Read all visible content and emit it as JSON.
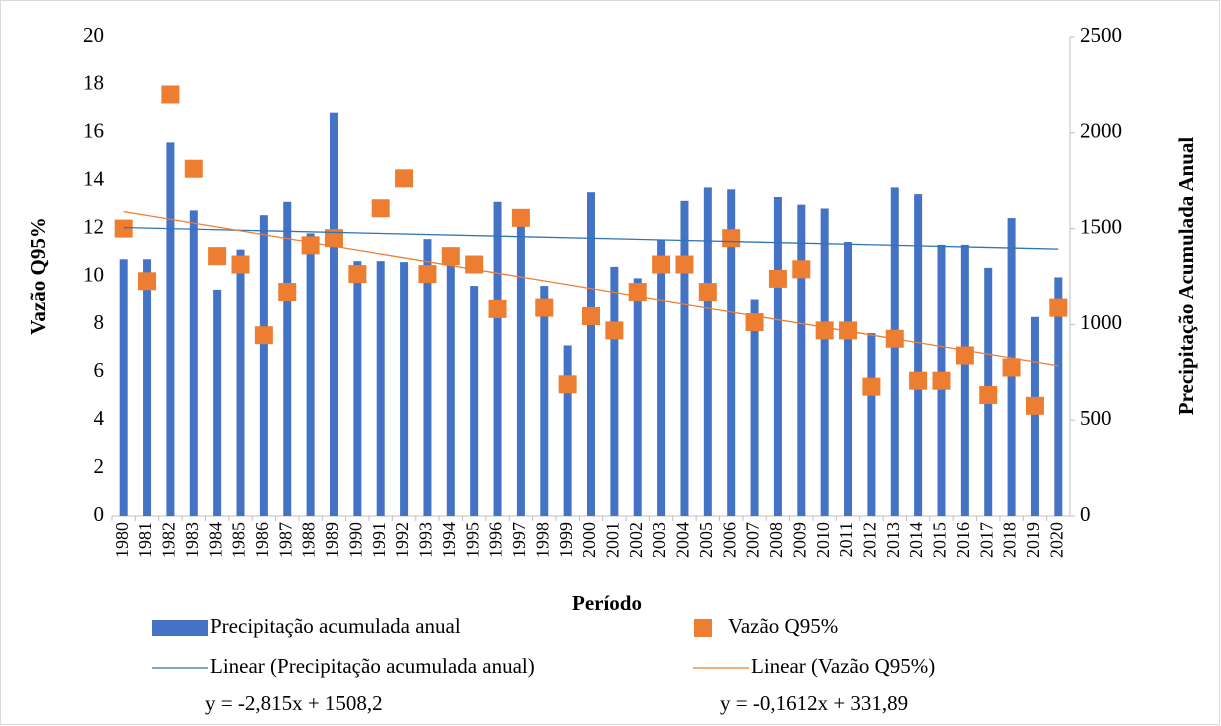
{
  "chart_data": {
    "type": "bar",
    "xlabel": "Período",
    "ylabel": "Vazão Q95%",
    "y2label": "Precipitação Acumulada Anual",
    "categories": [
      "1980",
      "1981",
      "1982",
      "1983",
      "1984",
      "1985",
      "1986",
      "1987",
      "1988",
      "1989",
      "1990",
      "1991",
      "1992",
      "1993",
      "1994",
      "1995",
      "1996",
      "1997",
      "1998",
      "1999",
      "2000",
      "2001",
      "2002",
      "2003",
      "2004",
      "2005",
      "2006",
      "2007",
      "2008",
      "2009",
      "2010",
      "2011",
      "2012",
      "2013",
      "2014",
      "2015",
      "2016",
      "2017",
      "2018",
      "2019",
      "2020"
    ],
    "series": [
      {
        "name": "Precipitação acumulada anual",
        "type": "bar",
        "axis": "y2",
        "color": "#4472c4",
        "values": [
          1340,
          1340,
          1950,
          1595,
          1180,
          1390,
          1570,
          1640,
          1475,
          2105,
          1330,
          1330,
          1325,
          1445,
          1315,
          1200,
          1640,
          1550,
          1200,
          890,
          1690,
          1300,
          1240,
          1440,
          1645,
          1715,
          1705,
          1130,
          1665,
          1625,
          1605,
          1430,
          955,
          1715,
          1680,
          1415,
          1415,
          1295,
          1555,
          1040,
          1245
        ]
      },
      {
        "name": "Vazão Q95%",
        "type": "scatter",
        "color": "#ed7d31",
        "values": [
          12.0,
          9.8,
          17.6,
          14.5,
          10.85,
          10.5,
          7.55,
          9.35,
          11.3,
          11.6,
          10.1,
          12.85,
          14.1,
          10.1,
          10.85,
          10.5,
          8.65,
          12.45,
          8.7,
          5.5,
          8.35,
          7.75,
          9.35,
          10.5,
          10.5,
          9.35,
          11.6,
          8.1,
          9.9,
          10.3,
          7.75,
          7.75,
          5.4,
          7.4,
          5.65,
          5.65,
          6.7,
          5.05,
          6.2,
          4.6,
          8.7
        ]
      }
    ],
    "trendlines": [
      {
        "name": "Linear (Precipitação acumulada anual)",
        "axis": "y2",
        "color": "#2e75b6",
        "x": [
          1980,
          2020
        ],
        "values": [
          1505.39,
          1392.79
        ],
        "equation": "y = -2,815x + 1508,2"
      },
      {
        "name": "Linear (Vazão Q95%)",
        "color": "#ed7d31",
        "x": [
          1980,
          2020
        ],
        "values": [
          12.71,
          6.27
        ],
        "equation": "y = -0,1612x + 331,89"
      }
    ],
    "ylim": [
      0,
      20
    ],
    "yticks": [
      0,
      2,
      4,
      6,
      8,
      10,
      12,
      14,
      16,
      18,
      20
    ],
    "y2lim": [
      0,
      2500
    ],
    "y2ticks": [
      0,
      500,
      1000,
      1500,
      2000,
      2500
    ],
    "legend": "bottom"
  }
}
